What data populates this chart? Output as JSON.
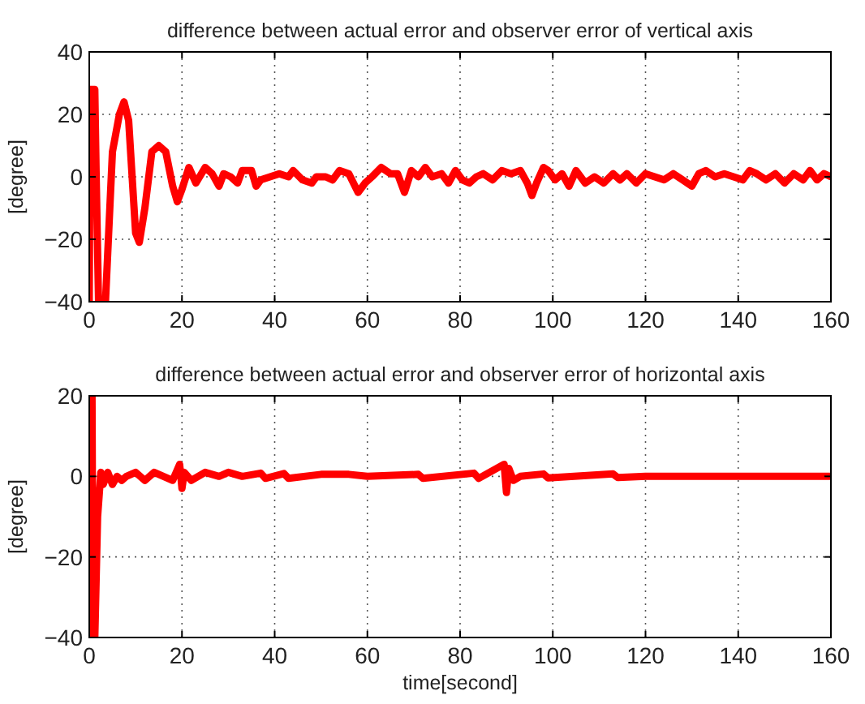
{
  "chart_data": [
    {
      "type": "line",
      "title": "difference between actual error and observer error of vertical axis",
      "ylabel": "[degree]",
      "xlim": [
        0,
        160
      ],
      "xticks": [
        0,
        20,
        40,
        60,
        80,
        100,
        120,
        140,
        160
      ],
      "ylim": [
        -40,
        40
      ],
      "yticks": [
        -40,
        -20,
        0,
        20,
        40
      ],
      "grid": true,
      "line_style": "solid",
      "marker": "none",
      "series": [
        {
          "color": "#ff0000",
          "x": [
            0,
            0.2,
            1.2,
            1.5,
            2,
            3.5,
            5,
            6.5,
            7.5,
            8.5,
            10,
            10.8,
            12,
            13.5,
            15,
            16.5,
            18,
            19,
            20,
            21.5,
            23,
            25,
            26.5,
            28,
            29,
            30.5,
            32,
            33,
            35,
            36,
            37,
            39,
            41,
            43,
            44,
            46,
            48,
            49,
            51,
            52.5,
            54,
            56,
            58,
            59.5,
            61,
            63,
            65,
            66.5,
            68,
            69.5,
            71,
            72.5,
            74,
            76,
            77.5,
            79,
            80.5,
            82,
            83.5,
            85,
            87,
            89,
            91,
            93,
            94.5,
            95.5,
            96.5,
            98,
            99,
            100.5,
            102,
            103.5,
            105,
            107,
            109,
            111,
            113,
            114.5,
            116,
            118,
            120,
            122,
            124,
            126,
            128,
            130,
            131.5,
            133,
            135,
            137,
            139,
            141,
            142.5,
            144,
            146,
            148,
            150,
            152,
            154,
            155.5,
            157,
            158.5,
            160
          ],
          "values": [
            -40,
            28,
            28,
            0,
            -40,
            -40,
            8,
            20,
            24,
            18,
            -18,
            -21,
            -10,
            8,
            10,
            8,
            -3,
            -8,
            -4,
            3,
            -2,
            3,
            1,
            -3,
            1,
            0,
            -2,
            2,
            2,
            -3,
            -1,
            0,
            1,
            0,
            2,
            -1,
            -2,
            0,
            0,
            -1,
            2,
            1,
            -5,
            -2,
            0,
            3,
            1,
            1,
            -5,
            2,
            0,
            3,
            0,
            1,
            -2,
            2,
            -1,
            -2,
            0,
            1,
            -1,
            2,
            1,
            2,
            -2,
            -6,
            -2,
            3,
            2,
            -1,
            1,
            -3,
            2,
            -2,
            0,
            -2,
            1,
            -1,
            1,
            -2,
            1,
            0,
            -1,
            1,
            -1,
            -3,
            1,
            2,
            0,
            1,
            0,
            -1,
            2,
            1,
            -1,
            1,
            -2,
            1,
            -1,
            2,
            -1,
            1,
            0
          ]
        }
      ]
    },
    {
      "type": "line",
      "title": "difference between actual error and observer error of horizontal axis",
      "xlabel": "time[second]",
      "ylabel": "[degree]",
      "xlim": [
        0,
        160
      ],
      "xticks": [
        0,
        20,
        40,
        60,
        80,
        100,
        120,
        140,
        160
      ],
      "ylim": [
        -40,
        20
      ],
      "yticks": [
        -40,
        -20,
        0,
        20
      ],
      "grid": true,
      "line_style": "solid",
      "marker": "none",
      "series": [
        {
          "color": "#ff0000",
          "x": [
            0,
            0.3,
            0.6,
            0.8,
            1.2,
            1.8,
            2.5,
            3,
            4,
            5,
            6,
            7,
            8,
            10,
            12,
            14,
            16,
            18,
            19.5,
            20,
            20.5,
            22,
            25,
            28,
            30,
            33,
            37,
            38,
            42,
            43,
            50,
            56,
            60,
            71,
            72,
            83,
            84,
            89.5,
            90,
            90.5,
            91.5,
            93,
            98,
            99,
            113,
            114,
            120,
            160
          ],
          "values": [
            -40,
            20,
            20,
            -40,
            -40,
            -10,
            1,
            -2,
            1,
            -2,
            0,
            -1,
            0,
            1,
            -1,
            1,
            0,
            -1,
            3,
            -3,
            1,
            -1,
            1,
            0,
            1,
            0,
            0.8,
            -0.5,
            0.7,
            -0.5,
            0.5,
            0.5,
            0,
            0.5,
            -0.5,
            0.8,
            -0.5,
            3,
            -4,
            2,
            -1,
            0,
            0.6,
            -0.4,
            0.6,
            -0.3,
            0,
            0
          ]
        }
      ]
    }
  ]
}
